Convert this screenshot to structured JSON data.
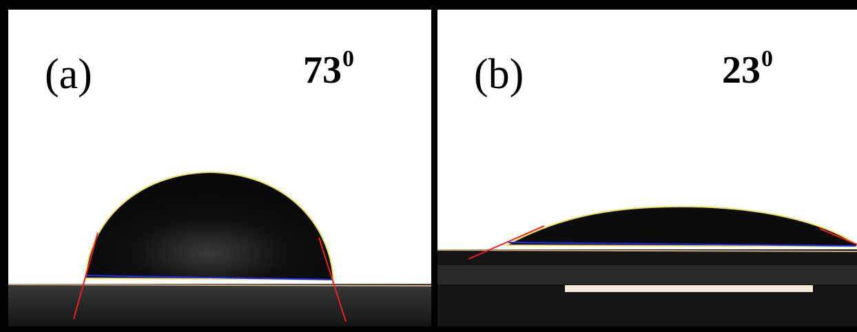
{
  "panels": [
    {
      "label": "(a)",
      "angle": "73",
      "degree": "0"
    },
    {
      "label": "(b)",
      "angle": "23",
      "degree": "0"
    }
  ]
}
